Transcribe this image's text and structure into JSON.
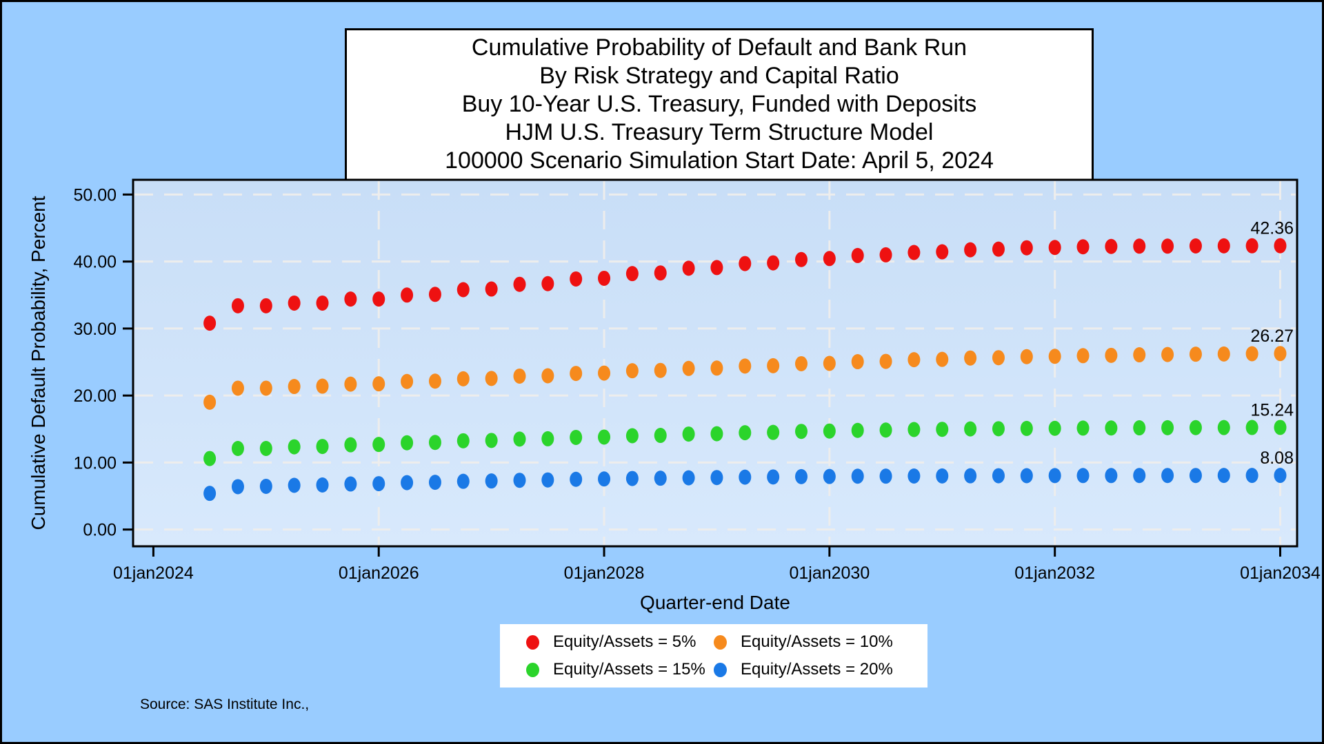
{
  "page": {
    "background": "#99ccff",
    "plot_background_top": "#c8def7",
    "plot_background_bottom": "#d8e9fc",
    "gridline_color": "#ededed",
    "source_note": "Source: SAS Institute Inc.,"
  },
  "title": {
    "lines": [
      "Cumulative Probability of Default and Bank Run",
      "By Risk Strategy and Capital Ratio",
      "Buy 10-Year U.S. Treasury, Funded with Deposits",
      "HJM U.S. Treasury Term Structure Model",
      "100000 Scenario Simulation Start Date: April 5, 2024"
    ]
  },
  "chart_data": {
    "type": "scatter",
    "xlabel": "Quarter-end Date",
    "ylabel": "Cumulative Default Probability, Percent",
    "grid": true,
    "legend_position": "bottom",
    "x_axis": {
      "range_years": [
        2023.82,
        2034.15
      ],
      "ticks": [
        {
          "year": 2024,
          "label": "01jan2024"
        },
        {
          "year": 2026,
          "label": "01jan2026"
        },
        {
          "year": 2028,
          "label": "01jan2028"
        },
        {
          "year": 2030,
          "label": "01jan2030"
        },
        {
          "year": 2032,
          "label": "01jan2032"
        },
        {
          "year": 2034,
          "label": "01jan2034"
        }
      ],
      "gridline_years": [
        2026,
        2028,
        2030,
        2032,
        2034
      ]
    },
    "y_axis": {
      "range": [
        -2.5,
        52.2
      ],
      "ticks": [
        {
          "value": 50,
          "label": "50.00"
        },
        {
          "value": 40,
          "label": "40.00"
        },
        {
          "value": 30,
          "label": "30.00"
        },
        {
          "value": 20,
          "label": "20.00"
        },
        {
          "value": 10,
          "label": "10.00"
        },
        {
          "value": 0,
          "label": "0.00"
        }
      ]
    },
    "x_start_year": 2024.5,
    "x_step_years": 0.25,
    "series": [
      {
        "name": "Equity/Assets = 5%",
        "color": "#ee1111",
        "end_label": "42.36",
        "values": [
          30.8,
          33.4,
          33.4,
          33.8,
          33.8,
          34.4,
          34.4,
          35.0,
          35.1,
          35.8,
          35.9,
          36.6,
          36.7,
          37.4,
          37.5,
          38.2,
          38.3,
          39.0,
          39.1,
          39.7,
          39.8,
          40.3,
          40.45,
          40.9,
          41.0,
          41.35,
          41.45,
          41.75,
          41.85,
          42.05,
          42.1,
          42.2,
          42.25,
          42.3,
          42.3,
          42.33,
          42.34,
          42.35,
          42.36
        ]
      },
      {
        "name": "Equity/Assets = 10%",
        "color": "#f68a1d",
        "end_label": "26.27",
        "values": [
          19.0,
          21.1,
          21.1,
          21.35,
          21.4,
          21.7,
          21.75,
          22.1,
          22.15,
          22.5,
          22.55,
          22.9,
          22.95,
          23.3,
          23.35,
          23.7,
          23.75,
          24.05,
          24.1,
          24.4,
          24.45,
          24.75,
          24.8,
          25.05,
          25.1,
          25.35,
          25.4,
          25.6,
          25.65,
          25.8,
          25.85,
          25.95,
          26.0,
          26.08,
          26.12,
          26.17,
          26.2,
          26.24,
          26.27
        ]
      },
      {
        "name": "Equity/Assets = 15%",
        "color": "#2bd42b",
        "end_label": "15.24",
        "values": [
          10.6,
          12.1,
          12.1,
          12.35,
          12.4,
          12.65,
          12.7,
          12.95,
          13.0,
          13.25,
          13.3,
          13.5,
          13.55,
          13.75,
          13.8,
          14.0,
          14.05,
          14.25,
          14.3,
          14.45,
          14.5,
          14.65,
          14.7,
          14.8,
          14.85,
          14.93,
          14.96,
          15.02,
          15.05,
          15.09,
          15.11,
          15.14,
          15.16,
          15.18,
          15.2,
          15.21,
          15.22,
          15.23,
          15.24
        ]
      },
      {
        "name": "Equity/Assets = 20%",
        "color": "#1a79e6",
        "end_label": "8.08",
        "values": [
          5.4,
          6.4,
          6.45,
          6.6,
          6.65,
          6.8,
          6.85,
          7.0,
          7.05,
          7.2,
          7.25,
          7.35,
          7.4,
          7.5,
          7.55,
          7.62,
          7.66,
          7.72,
          7.76,
          7.82,
          7.85,
          7.9,
          7.92,
          7.96,
          7.97,
          7.99,
          8.0,
          8.02,
          8.03,
          8.04,
          8.05,
          8.06,
          8.06,
          8.07,
          8.07,
          8.07,
          8.08,
          8.08,
          8.08
        ]
      }
    ]
  },
  "legend": {
    "items": [
      {
        "label": "Equity/Assets = 5%"
      },
      {
        "label": "Equity/Assets = 10%"
      },
      {
        "label": "Equity/Assets = 15%"
      },
      {
        "label": "Equity/Assets = 20%"
      }
    ]
  }
}
